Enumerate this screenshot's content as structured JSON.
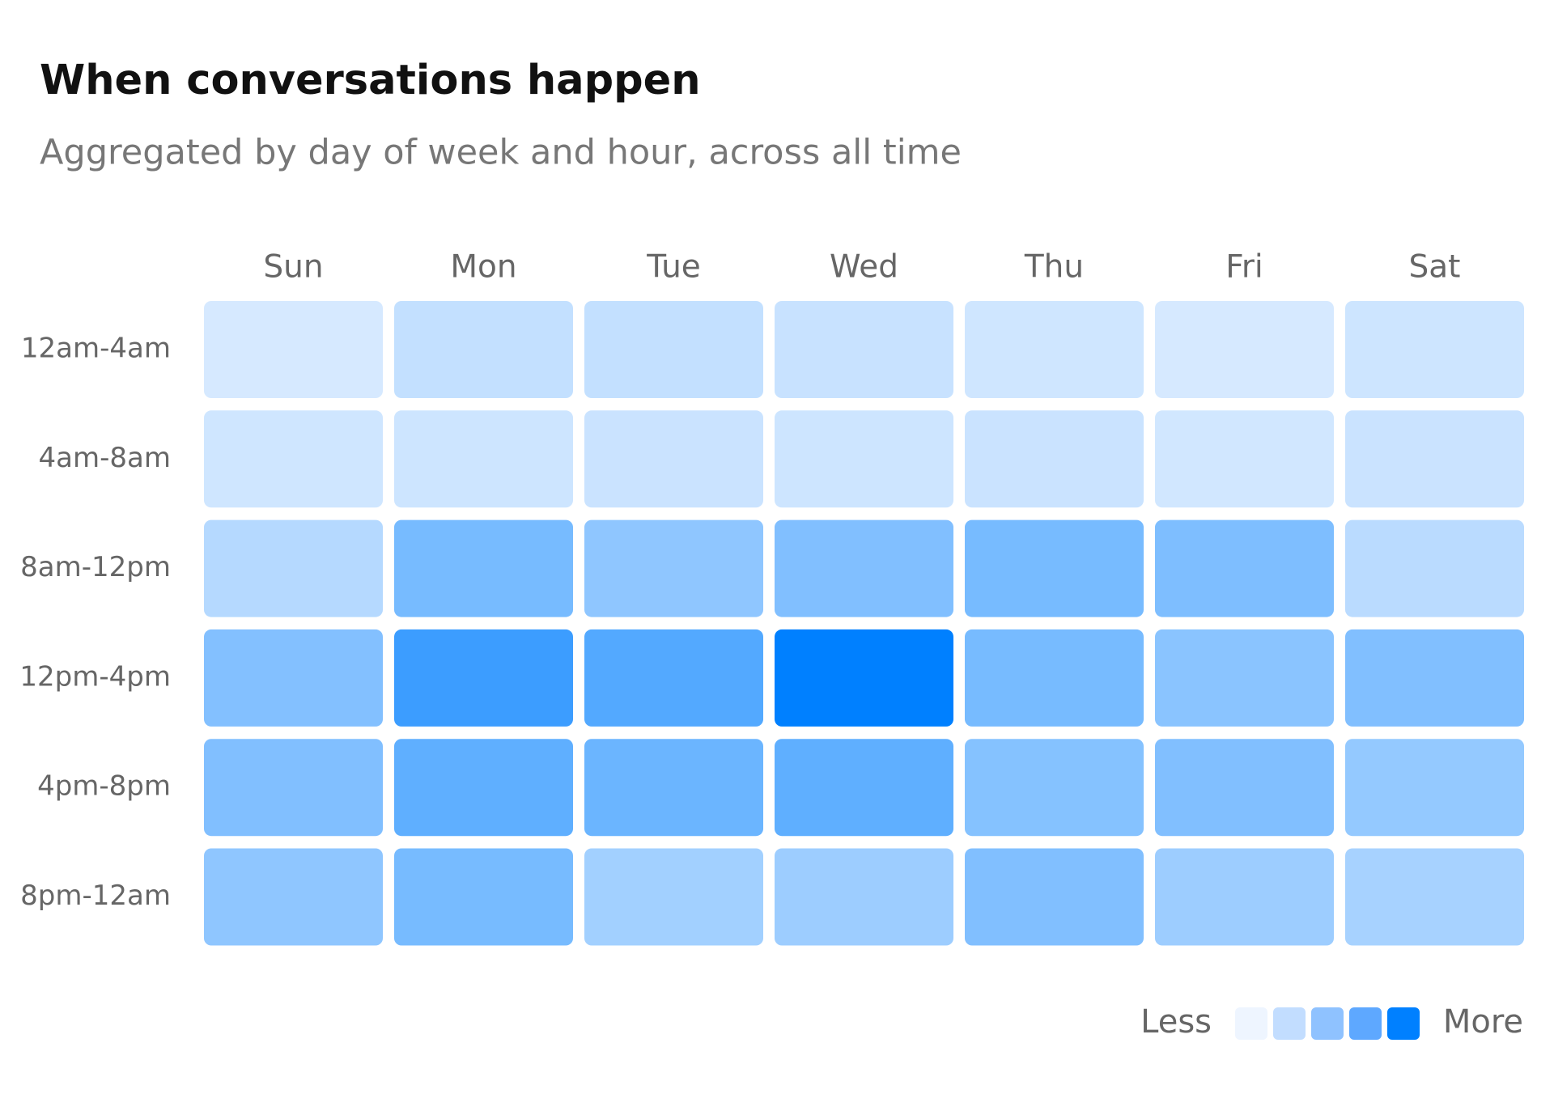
{
  "chart_data": {
    "type": "heatmap",
    "title": "When conversations happen",
    "subtitle": "Aggregated by day of week and hour, across all time",
    "x_categories": [
      "Sun",
      "Mon",
      "Tue",
      "Wed",
      "Thu",
      "Fri",
      "Sat"
    ],
    "y_categories": [
      "12am-4am",
      "4am-8am",
      "8am-12pm",
      "12pm-4pm",
      "4pm-8pm",
      "8pm-12am"
    ],
    "values": [
      [
        10,
        18,
        18,
        16,
        13,
        10,
        14
      ],
      [
        13,
        14,
        15,
        14,
        15,
        12,
        15
      ],
      [
        24,
        50,
        40,
        46,
        50,
        47,
        22
      ],
      [
        45,
        75,
        65,
        100,
        50,
        42,
        46
      ],
      [
        46,
        60,
        55,
        60,
        44,
        46,
        38
      ],
      [
        40,
        50,
        32,
        34,
        46,
        34,
        30
      ]
    ],
    "zlim": [
      0,
      100
    ],
    "colormap": [
      "#eef5ff",
      "#0080ff"
    ],
    "legend": {
      "less_label": "Less",
      "more_label": "More",
      "colors": [
        "#eef5ff",
        "#c2ddff",
        "#8fc2ff",
        "#5ea8ff",
        "#0080ff"
      ]
    }
  }
}
